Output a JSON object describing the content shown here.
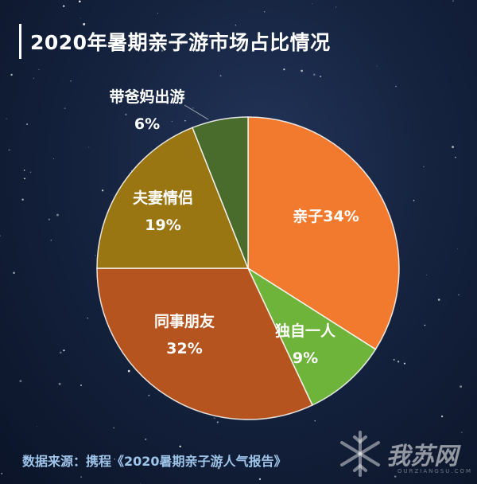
{
  "title": "2020年暑期亲子游市场占比情况",
  "source": "数据来源：携程《2020暑期亲子游人气报告》",
  "logo": {
    "text": "我苏网",
    "subtext": "OURZIANGSU.COM"
  },
  "chart_data": {
    "type": "pie",
    "slices": [
      {
        "name": "亲子",
        "value": 34,
        "label_line1": "亲子34%",
        "label_line2": "",
        "color": "#f27a2f"
      },
      {
        "name": "独自一人",
        "value": 9,
        "label_line1": "独自一人",
        "label_line2": "9%",
        "color": "#6eb33a"
      },
      {
        "name": "同事朋友",
        "value": 32,
        "label_line1": "同事朋友",
        "label_line2": "32%",
        "color": "#b5541f"
      },
      {
        "name": "夫妻情侣",
        "value": 19,
        "label_line1": "夫妻情侣",
        "label_line2": "19%",
        "color": "#9a7612"
      },
      {
        "name": "带爸妈出游",
        "value": 6,
        "label_line1": "带爸妈出游",
        "label_line2": "6%",
        "color": "#496b2c"
      }
    ]
  }
}
